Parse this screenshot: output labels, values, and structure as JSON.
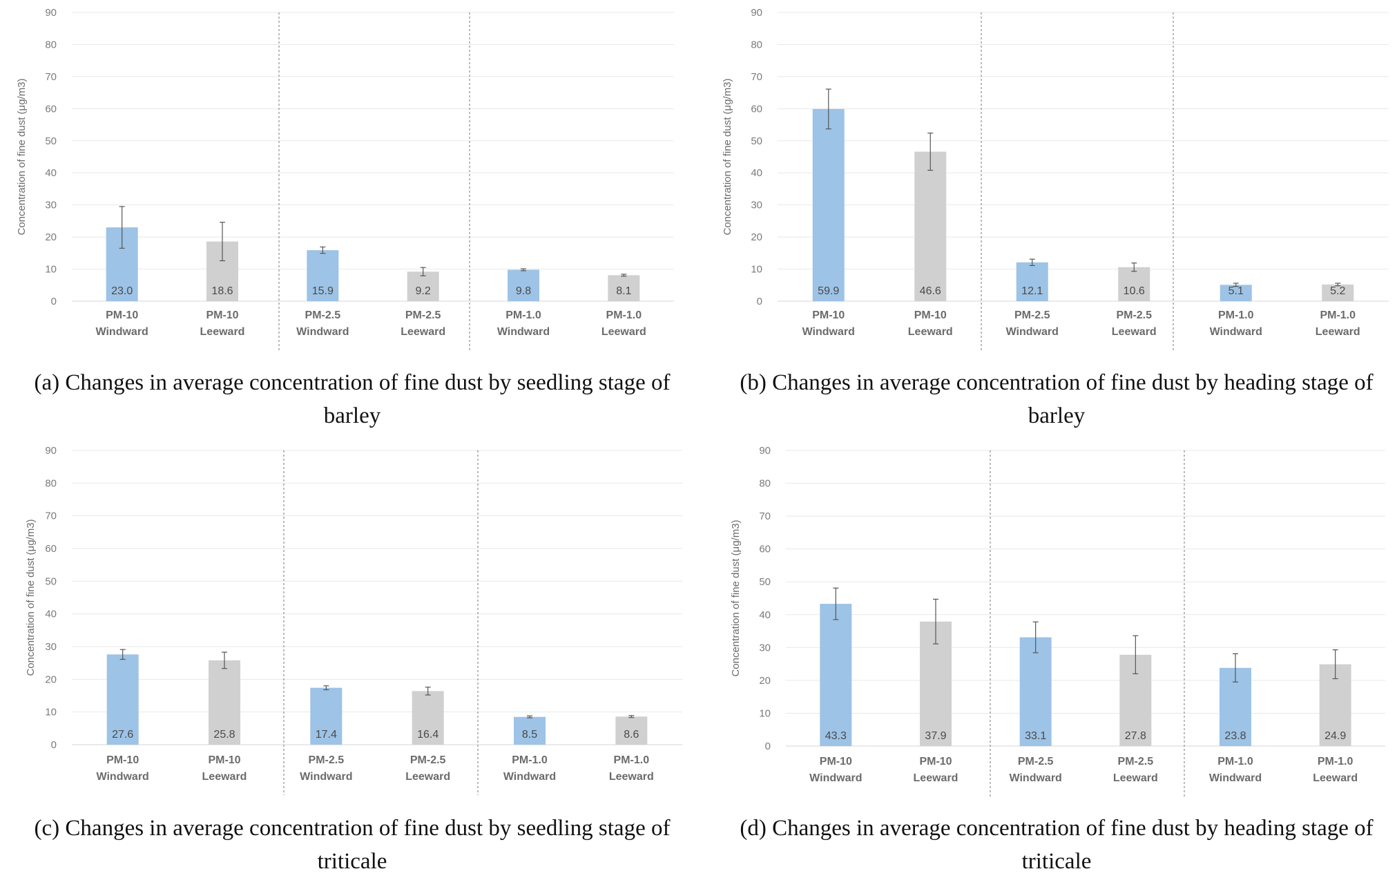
{
  "chart_data": [
    {
      "type": "bar",
      "panel": "a",
      "caption": "(a) Changes in average concentration of fine dust by seedling stage of barley",
      "ylabel": "Concentration of fine dust (μg/m3)",
      "ylim": [
        0,
        90
      ],
      "yticks": [
        0,
        10,
        20,
        30,
        40,
        50,
        60,
        70,
        80,
        90
      ],
      "categories": [
        [
          "PM-10",
          "Windward"
        ],
        [
          "PM-10",
          "Leeward"
        ],
        [
          "PM-2.5",
          "Windward"
        ],
        [
          "PM-2.5",
          "Leeward"
        ],
        [
          "PM-1.0",
          "Windward"
        ],
        [
          "PM-1.0",
          "Leeward"
        ]
      ],
      "values": [
        23.0,
        18.6,
        15.9,
        9.2,
        9.8,
        8.1
      ],
      "labels": [
        "23.0",
        "18.6",
        "15.9",
        "9.2",
        "9.8",
        "8.1"
      ],
      "errors": [
        6.5,
        6.0,
        1.0,
        1.3,
        0.3,
        0.3
      ],
      "colors": [
        "#9dc3e6",
        "#d0d0d0",
        "#9dc3e6",
        "#d0d0d0",
        "#9dc3e6",
        "#d0d0d0"
      ],
      "grid": true,
      "group_separators": true
    },
    {
      "type": "bar",
      "panel": "b",
      "caption": "(b) Changes in average concentration of fine dust by heading stage of barley",
      "ylabel": "Concentration of fine dust (μg/m3)",
      "ylim": [
        0,
        90
      ],
      "yticks": [
        0,
        10,
        20,
        30,
        40,
        50,
        60,
        70,
        80,
        90
      ],
      "categories": [
        [
          "PM-10",
          "Windward"
        ],
        [
          "PM-10",
          "Leeward"
        ],
        [
          "PM-2.5",
          "Windward"
        ],
        [
          "PM-2.5",
          "Leeward"
        ],
        [
          "PM-1.0",
          "Windward"
        ],
        [
          "PM-1.0",
          "Leeward"
        ]
      ],
      "values": [
        59.9,
        46.6,
        12.1,
        10.6,
        5.1,
        5.2
      ],
      "labels": [
        "59.9",
        "46.6",
        "12.1",
        "10.6",
        "5.1",
        "5.2"
      ],
      "errors": [
        6.2,
        5.8,
        1.0,
        1.3,
        0.5,
        0.4
      ],
      "colors": [
        "#9dc3e6",
        "#d0d0d0",
        "#9dc3e6",
        "#d0d0d0",
        "#9dc3e6",
        "#d0d0d0"
      ],
      "grid": true,
      "group_separators": true
    },
    {
      "type": "bar",
      "panel": "c",
      "caption": "(c) Changes in average concentration of fine dust by seedling stage of triticale",
      "ylabel": "Concentration of fine dust (μg/m3)",
      "ylim": [
        0,
        90
      ],
      "yticks": [
        0,
        10,
        20,
        30,
        40,
        50,
        60,
        70,
        80,
        90
      ],
      "categories": [
        [
          "PM-10",
          "Windward"
        ],
        [
          "PM-10",
          "Leeward"
        ],
        [
          "PM-2.5",
          "Windward"
        ],
        [
          "PM-2.5",
          "Leeward"
        ],
        [
          "PM-1.0",
          "Windward"
        ],
        [
          "PM-1.0",
          "Leeward"
        ]
      ],
      "values": [
        27.6,
        25.8,
        17.4,
        16.4,
        8.5,
        8.6
      ],
      "labels": [
        "27.6",
        "25.8",
        "17.4",
        "16.4",
        "8.5",
        "8.6"
      ],
      "errors": [
        1.5,
        2.5,
        0.6,
        1.2,
        0.3,
        0.3
      ],
      "colors": [
        "#9dc3e6",
        "#d0d0d0",
        "#9dc3e6",
        "#d0d0d0",
        "#9dc3e6",
        "#d0d0d0"
      ],
      "grid": true,
      "group_separators": true
    },
    {
      "type": "bar",
      "panel": "d",
      "caption": "(d) Changes in average concentration of fine dust by heading stage of triticale",
      "ylabel": "Concentration of fine dust (μg/m3)",
      "ylim": [
        0,
        90
      ],
      "yticks": [
        0,
        10,
        20,
        30,
        40,
        50,
        60,
        70,
        80,
        90
      ],
      "categories": [
        [
          "PM-10",
          "Windward"
        ],
        [
          "PM-10",
          "Leeward"
        ],
        [
          "PM-2.5",
          "Windward"
        ],
        [
          "PM-2.5",
          "Leeward"
        ],
        [
          "PM-1.0",
          "Windward"
        ],
        [
          "PM-1.0",
          "Leeward"
        ]
      ],
      "values": [
        43.3,
        37.9,
        33.1,
        27.8,
        23.8,
        24.9
      ],
      "labels": [
        "43.3",
        "37.9",
        "33.1",
        "27.8",
        "23.8",
        "24.9"
      ],
      "errors": [
        4.8,
        6.8,
        4.7,
        5.8,
        4.3,
        4.4
      ],
      "colors": [
        "#9dc3e6",
        "#d0d0d0",
        "#9dc3e6",
        "#d0d0d0",
        "#9dc3e6",
        "#d0d0d0"
      ],
      "grid": true,
      "group_separators": true
    }
  ]
}
